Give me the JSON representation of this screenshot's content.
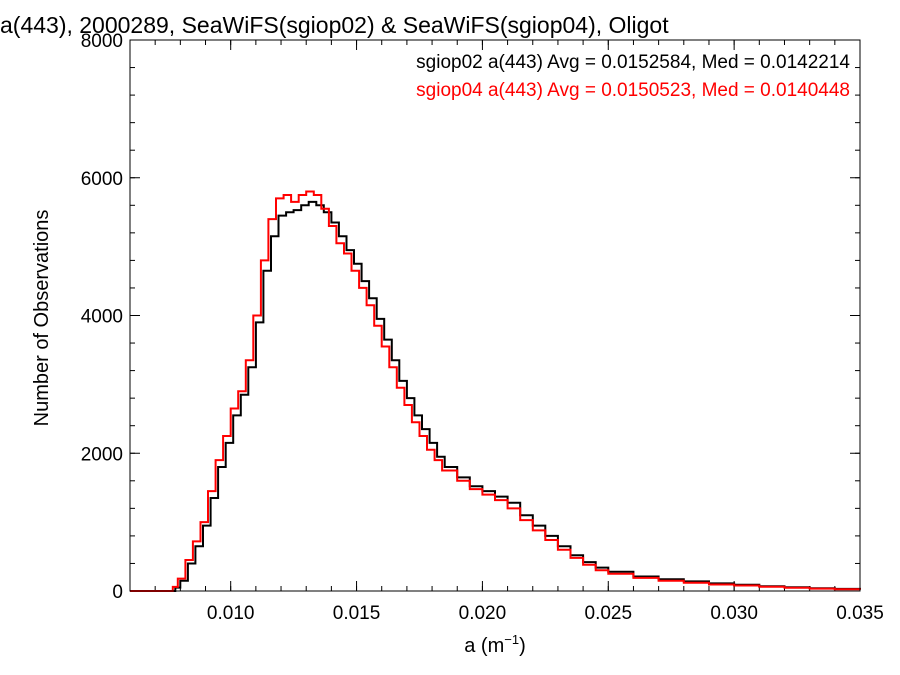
{
  "chart_data": {
    "type": "line",
    "step": true,
    "title": "a(443), 2000289, SeaWiFS(sgiop02) & SeaWiFS(sgiop04), Oligot",
    "xlabel": "a (m",
    "xlabel_sup": "−1",
    "xlabel_end": ")",
    "ylabel": "Number of Observations",
    "xlim": [
      0.006,
      0.035
    ],
    "ylim": [
      0,
      8000
    ],
    "x_ticks": [
      0.01,
      0.015,
      0.02,
      0.025,
      0.03,
      0.035
    ],
    "x_tick_labels": [
      "0.010",
      "0.015",
      "0.020",
      "0.025",
      "0.030",
      "0.035"
    ],
    "y_ticks": [
      0,
      2000,
      4000,
      6000,
      8000
    ],
    "y_tick_labels": [
      "0",
      "2000",
      "4000",
      "6000",
      "8000"
    ],
    "legend_position": "top-right",
    "series": [
      {
        "name": "sgiop02 a(443) Avg = 0.0152584, Med = 0.0142214",
        "color": "#000000",
        "points": [
          [
            0.006,
            0
          ],
          [
            0.0075,
            0
          ],
          [
            0.0078,
            50
          ],
          [
            0.008,
            150
          ],
          [
            0.0083,
            400
          ],
          [
            0.0086,
            650
          ],
          [
            0.0089,
            950
          ],
          [
            0.0092,
            1350
          ],
          [
            0.0095,
            1800
          ],
          [
            0.0098,
            2150
          ],
          [
            0.0101,
            2550
          ],
          [
            0.0104,
            2850
          ],
          [
            0.0107,
            3250
          ],
          [
            0.011,
            3900
          ],
          [
            0.0113,
            4650
          ],
          [
            0.0116,
            5150
          ],
          [
            0.0119,
            5450
          ],
          [
            0.0122,
            5500
          ],
          [
            0.0125,
            5530
          ],
          [
            0.0128,
            5600
          ],
          [
            0.0131,
            5650
          ],
          [
            0.0134,
            5600
          ],
          [
            0.0137,
            5500
          ],
          [
            0.014,
            5350
          ],
          [
            0.0143,
            5150
          ],
          [
            0.0146,
            4950
          ],
          [
            0.0149,
            4750
          ],
          [
            0.0152,
            4500
          ],
          [
            0.0155,
            4250
          ],
          [
            0.0158,
            3950
          ],
          [
            0.0161,
            3650
          ],
          [
            0.0164,
            3350
          ],
          [
            0.0167,
            3050
          ],
          [
            0.017,
            2800
          ],
          [
            0.0173,
            2550
          ],
          [
            0.0176,
            2350
          ],
          [
            0.0179,
            2150
          ],
          [
            0.0182,
            1950
          ],
          [
            0.0185,
            1800
          ],
          [
            0.019,
            1650
          ],
          [
            0.0195,
            1520
          ],
          [
            0.02,
            1450
          ],
          [
            0.0205,
            1370
          ],
          [
            0.021,
            1280
          ],
          [
            0.0215,
            1100
          ],
          [
            0.022,
            950
          ],
          [
            0.0225,
            800
          ],
          [
            0.023,
            650
          ],
          [
            0.0235,
            520
          ],
          [
            0.024,
            420
          ],
          [
            0.0245,
            340
          ],
          [
            0.025,
            280
          ],
          [
            0.026,
            210
          ],
          [
            0.027,
            170
          ],
          [
            0.028,
            140
          ],
          [
            0.029,
            110
          ],
          [
            0.03,
            90
          ],
          [
            0.031,
            70
          ],
          [
            0.032,
            55
          ],
          [
            0.033,
            40
          ],
          [
            0.034,
            30
          ],
          [
            0.035,
            20
          ]
        ]
      },
      {
        "name": "sgiop04 a(443) Avg = 0.0150523, Med = 0.0140448",
        "color": "#ff0000",
        "points": [
          [
            0.006,
            0
          ],
          [
            0.0074,
            0
          ],
          [
            0.0077,
            60
          ],
          [
            0.0079,
            180
          ],
          [
            0.0082,
            450
          ],
          [
            0.0085,
            720
          ],
          [
            0.0088,
            1000
          ],
          [
            0.0091,
            1450
          ],
          [
            0.0094,
            1900
          ],
          [
            0.0097,
            2250
          ],
          [
            0.01,
            2650
          ],
          [
            0.0103,
            2900
          ],
          [
            0.0106,
            3350
          ],
          [
            0.0109,
            4000
          ],
          [
            0.0112,
            4800
          ],
          [
            0.0115,
            5400
          ],
          [
            0.0118,
            5700
          ],
          [
            0.0121,
            5750
          ],
          [
            0.0124,
            5650
          ],
          [
            0.0127,
            5750
          ],
          [
            0.013,
            5800
          ],
          [
            0.0133,
            5750
          ],
          [
            0.0136,
            5550
          ],
          [
            0.0139,
            5300
          ],
          [
            0.0142,
            5050
          ],
          [
            0.0145,
            4900
          ],
          [
            0.0148,
            4650
          ],
          [
            0.0151,
            4400
          ],
          [
            0.0154,
            4150
          ],
          [
            0.0157,
            3850
          ],
          [
            0.016,
            3550
          ],
          [
            0.0163,
            3250
          ],
          [
            0.0166,
            2950
          ],
          [
            0.0169,
            2700
          ],
          [
            0.0172,
            2450
          ],
          [
            0.0175,
            2250
          ],
          [
            0.0178,
            2050
          ],
          [
            0.0181,
            1900
          ],
          [
            0.0184,
            1750
          ],
          [
            0.019,
            1600
          ],
          [
            0.0195,
            1480
          ],
          [
            0.02,
            1400
          ],
          [
            0.0205,
            1320
          ],
          [
            0.021,
            1200
          ],
          [
            0.0215,
            1030
          ],
          [
            0.022,
            880
          ],
          [
            0.0225,
            740
          ],
          [
            0.023,
            600
          ],
          [
            0.0235,
            480
          ],
          [
            0.024,
            380
          ],
          [
            0.0245,
            300
          ],
          [
            0.025,
            250
          ],
          [
            0.026,
            190
          ],
          [
            0.027,
            150
          ],
          [
            0.028,
            120
          ],
          [
            0.029,
            95
          ],
          [
            0.03,
            80
          ],
          [
            0.031,
            62
          ],
          [
            0.032,
            48
          ],
          [
            0.033,
            35
          ],
          [
            0.034,
            25
          ],
          [
            0.035,
            18
          ]
        ]
      }
    ]
  }
}
